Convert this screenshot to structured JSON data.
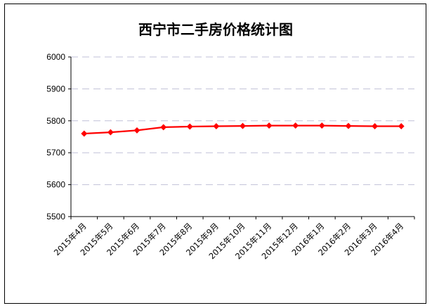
{
  "chart_data": {
    "type": "line",
    "title": "西宁市二手房价格统计图",
    "xlabel": "",
    "ylabel": "",
    "categories": [
      "2015年4月",
      "2015年5月",
      "2015年6月",
      "2015年7月",
      "2015年8月",
      "2015年9月",
      "2015年10月",
      "2015年11月",
      "2015年12月",
      "2016年1月",
      "2016年2月",
      "2016年3月",
      "2016年4月"
    ],
    "series": [
      {
        "values": [
          5760,
          5764,
          5770,
          5780,
          5782,
          5783,
          5784,
          5785,
          5785,
          5785,
          5784,
          5783,
          5783
        ]
      }
    ],
    "ylim": [
      5500,
      6000
    ],
    "yticks": [
      5500,
      5600,
      5700,
      5800,
      5900,
      6000
    ],
    "grid": true,
    "legend": "none",
    "colors": {
      "line": "#ff0000",
      "marker": "#ff0000",
      "grid": "#c0c0d8",
      "axis": "#000000"
    }
  }
}
